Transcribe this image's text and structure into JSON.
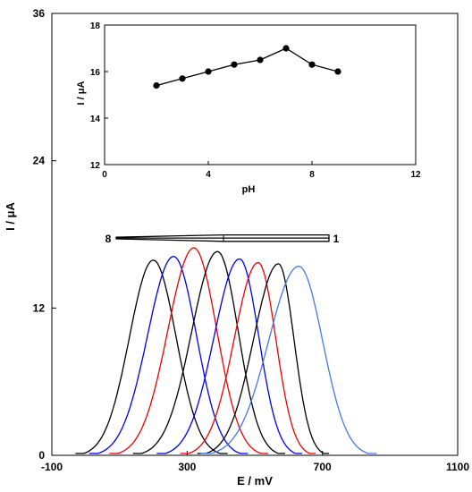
{
  "chart_data": [
    {
      "type": "line",
      "xlabel": "E / mV",
      "ylabel": "I / μA",
      "xlim": [
        -100,
        1100
      ],
      "ylim": [
        0,
        36
      ],
      "x_ticks": [
        -100,
        300,
        700,
        1100
      ],
      "y_ticks": [
        0,
        12,
        24,
        36
      ],
      "grid": false,
      "annotation": {
        "start_label": "8",
        "end_label": "1"
      },
      "series": [
        {
          "color": "#000000",
          "peak_x": 200,
          "peak_y": 15.9,
          "x_start": -30,
          "x_end": 420
        },
        {
          "color": "#0000ee",
          "peak_x": 260,
          "peak_y": 16.2,
          "x_start": 10,
          "x_end": 480
        },
        {
          "color": "#ee0000",
          "peak_x": 320,
          "peak_y": 16.9,
          "x_start": 70,
          "x_end": 540
        },
        {
          "color": "#000000",
          "peak_x": 390,
          "peak_y": 16.6,
          "x_start": 140,
          "x_end": 590
        },
        {
          "color": "#0000ee",
          "peak_x": 455,
          "peak_y": 16.0,
          "x_start": 210,
          "x_end": 640
        },
        {
          "color": "#ee0000",
          "peak_x": 510,
          "peak_y": 15.7,
          "x_start": 280,
          "x_end": 680
        },
        {
          "color": "#000000",
          "peak_x": 570,
          "peak_y": 15.6,
          "x_start": 330,
          "x_end": 720
        },
        {
          "color": "#4477ee",
          "peak_x": 630,
          "peak_y": 15.4,
          "x_start": 340,
          "x_end": 860
        }
      ]
    },
    {
      "type": "line",
      "xlabel": "pH",
      "ylabel": "I / μA",
      "xlim": [
        0,
        12
      ],
      "ylim": [
        12,
        18
      ],
      "x_ticks": [
        0,
        4,
        8,
        12
      ],
      "y_ticks": [
        12,
        14,
        16,
        18
      ],
      "grid": false,
      "series": [
        {
          "color": "#000000",
          "x": [
            2,
            3,
            4,
            5,
            6,
            7,
            8,
            9
          ],
          "y": [
            15.4,
            15.7,
            16.0,
            16.3,
            16.5,
            17.0,
            16.3,
            16.0
          ]
        }
      ]
    }
  ]
}
